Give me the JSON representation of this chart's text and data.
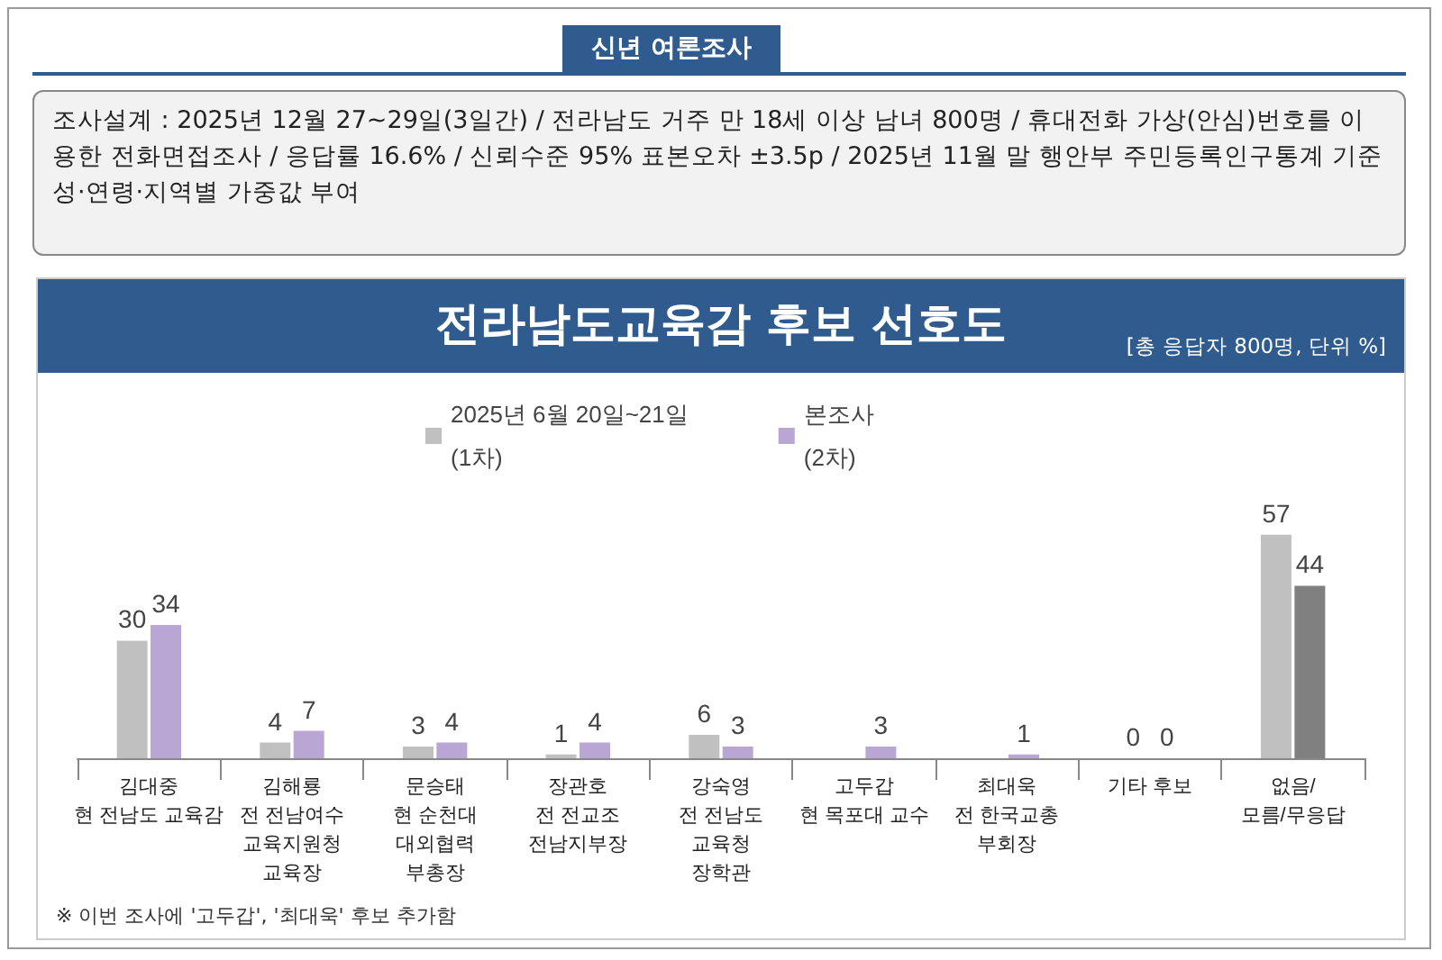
{
  "chart_data": {
    "type": "bar",
    "title": "전라남도교육감 후보 선호도",
    "subtitle": "[총 응답자 800명, 단위 %]",
    "annotations": [
      "신년 여론조사",
      "조사설계 : 2025년 12월 27~29일(3일간) / 전라남도 거주 만 18세 이상 남녀 800명 / 휴대전화 가상(안심)번호를 이용한 전화면접조사 / 응답률 16.6% / 신뢰수준 95% 표본오차 ±3.5p / 2025년 11월 말 행안부 주민등록인구통계 기준 성·연령·지역별 가중값 부여",
      "※ 이번 조사에 '고두갑', '최대욱' 후보 추가함"
    ],
    "categories": [
      "김대중\n현 전남도 교육감",
      "김해룡\n전 전남여수\n교육지원청\n교육장",
      "문승태\n현 순천대\n대외협력\n부총장",
      "장관호\n전 전교조\n전남지부장",
      "강숙영\n전 전남도\n교육청\n장학관",
      "고두갑\n현 목포대 교수",
      "최대욱\n전 한국교총\n부회장",
      "기타 후보",
      "없음/\n모름/무응답"
    ],
    "series": [
      {
        "name": "2025년 6월 20일~21일\n(1차)",
        "color": "#c0c0c0",
        "values": [
          30,
          4,
          3,
          1,
          6,
          null,
          null,
          0,
          57
        ]
      },
      {
        "name": "본조사\n(2차)",
        "color": "#b9a6d4",
        "colors": [
          "#b9a6d4",
          "#b9a6d4",
          "#b9a6d4",
          "#b9a6d4",
          "#b9a6d4",
          "#b9a6d4",
          "#b9a6d4",
          "#b9a6d4",
          "#808080"
        ],
        "values": [
          34,
          7,
          4,
          4,
          3,
          3,
          1,
          0,
          44
        ]
      }
    ],
    "tick_labels": "x",
    "data_labels": true,
    "legend": "top"
  }
}
